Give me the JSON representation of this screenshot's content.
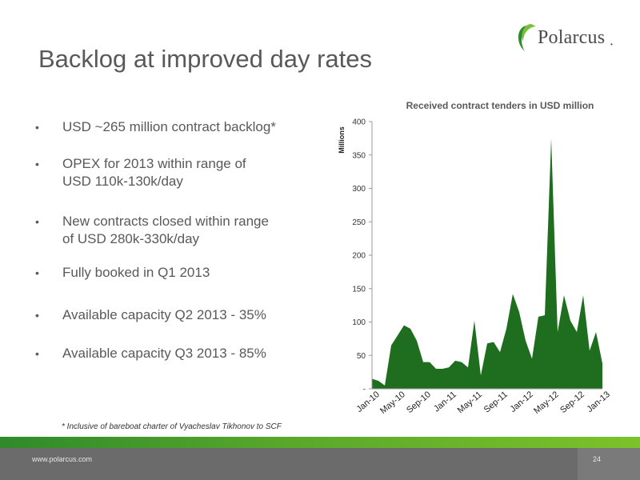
{
  "slide": {
    "title": "Backlog at improved day rates",
    "bullets": [
      {
        "lines": [
          "USD ~265 million contract backlog*"
        ]
      },
      {
        "lines": [
          "OPEX for 2013 within range of",
          "USD 110k-130k/day"
        ]
      },
      {
        "lines": [
          "New contracts closed within range",
          "of USD 280k-330k/day"
        ]
      },
      {
        "lines": [
          "Fully booked in Q1 2013"
        ]
      },
      {
        "lines": [
          "Available capacity Q2 2013 - 35%"
        ]
      },
      {
        "lines": [
          "Available capacity Q3 2013 - 85%"
        ]
      }
    ],
    "bullet_char": "•",
    "footnote": "* Inclusive of bareboat charter of Vyacheslav Tikhonov to SCF"
  },
  "brand": {
    "name": "Polarcus",
    "registered": "•",
    "website": "www.polarcus.com",
    "page_number": "24",
    "accent": "#2e8b2e",
    "footer_green": "#6fba2c",
    "footer_grey": "#6b6b6b"
  },
  "chart_data": {
    "type": "area",
    "title": "Received contract tenders in USD million",
    "ylabel": "Millions",
    "xlabel": "",
    "ylim": [
      0,
      400
    ],
    "yticks": [
      0,
      50,
      100,
      150,
      200,
      250,
      300,
      350,
      400
    ],
    "ytick_labels": [
      "-",
      "50",
      "100",
      "150",
      "200",
      "250",
      "300",
      "350",
      "400"
    ],
    "color": "#1f6e1f",
    "grid": false,
    "x_months": [
      "Jan-10",
      "Feb-10",
      "Mar-10",
      "Apr-10",
      "May-10",
      "Jun-10",
      "Jul-10",
      "Aug-10",
      "Sep-10",
      "Oct-10",
      "Nov-10",
      "Dec-10",
      "Jan-11",
      "Feb-11",
      "Mar-11",
      "Apr-11",
      "May-11",
      "Jun-11",
      "Jul-11",
      "Aug-11",
      "Sep-11",
      "Oct-11",
      "Nov-11",
      "Dec-11",
      "Jan-12",
      "Feb-12",
      "Mar-12",
      "Apr-12",
      "May-12",
      "Jun-12",
      "Jul-12",
      "Aug-12",
      "Sep-12",
      "Oct-12",
      "Nov-12",
      "Dec-12",
      "Jan-13"
    ],
    "values": [
      15,
      12,
      5,
      65,
      80,
      95,
      90,
      72,
      40,
      40,
      30,
      30,
      32,
      42,
      40,
      32,
      102,
      20,
      68,
      70,
      55,
      90,
      142,
      115,
      72,
      45,
      108,
      110,
      375,
      85,
      140,
      102,
      85,
      140,
      57,
      85,
      38
    ],
    "xtick_labels": [
      "Jan-10",
      "May-10",
      "Sep-10",
      "Jan-11",
      "May-11",
      "Sep-11",
      "Jan-12",
      "May-12",
      "Sep-12",
      "Jan-13"
    ],
    "xtick_indices": [
      0,
      4,
      8,
      12,
      16,
      20,
      24,
      28,
      32,
      36
    ]
  }
}
